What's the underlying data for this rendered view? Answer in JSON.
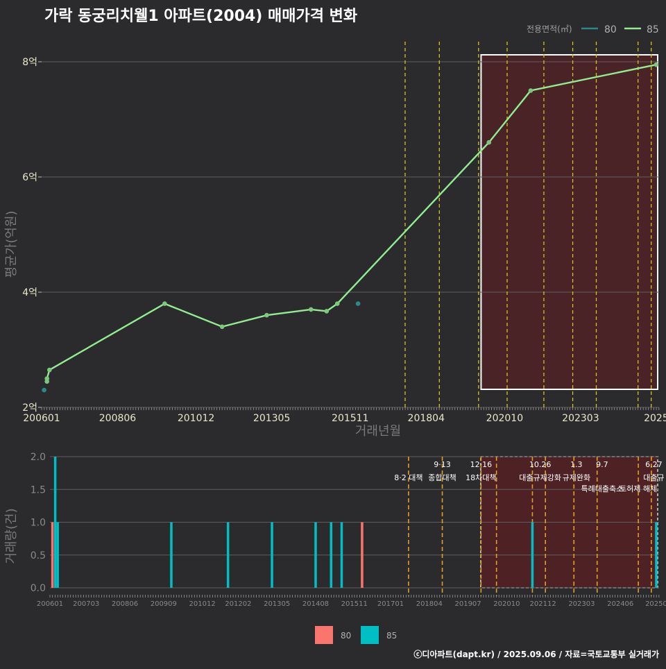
{
  "title": "가락 동궁리치웰1 아파트(2004) 매매가격 변화",
  "credit": "ⓒ디아파트(dapt.kr) / 2025.09.06 / 자료=국토교통부 실거래가",
  "legend_top": {
    "title": "전용면적(㎡)",
    "items": [
      {
        "label": "80",
        "color": "#2a8a8a"
      },
      {
        "label": "85",
        "color": "#90ee90"
      }
    ]
  },
  "legend_bottom": {
    "items": [
      {
        "label": "80",
        "color": "#f8766d"
      },
      {
        "label": "85",
        "color": "#00bfc4"
      }
    ]
  },
  "chart_data": [
    {
      "type": "line",
      "title": "가락 동궁리치웰1 아파트(2004) 매매가격 변화",
      "xlabel": "거래년월",
      "ylabel": "평균가(억원)",
      "ylim": [
        2,
        8
      ],
      "yticks": [
        2,
        4,
        6,
        8
      ],
      "ytick_labels": [
        "2억",
        "4억",
        "6억",
        "8억"
      ],
      "xlim": [
        2006.0,
        2025.67
      ],
      "xticks": [
        2006.0,
        2008.42,
        2010.92,
        2013.33,
        2015.83,
        2018.25,
        2020.75,
        2023.17,
        2025.58
      ],
      "xtick_labels": [
        "200601",
        "200806",
        "201012",
        "201305",
        "201511",
        "201804",
        "202010",
        "202303",
        "2025"
      ],
      "series": [
        {
          "name": "85",
          "color": "#90ee90",
          "points": [
            [
              2006.17,
              2.45
            ],
            [
              2006.17,
              2.5
            ],
            [
              2006.25,
              2.65
            ],
            [
              2009.92,
              3.8
            ],
            [
              2011.75,
              3.4
            ],
            [
              2013.17,
              3.6
            ],
            [
              2014.58,
              3.7
            ],
            [
              2015.08,
              3.67
            ],
            [
              2015.42,
              3.8
            ],
            [
              2020.25,
              6.6
            ],
            [
              2021.58,
              7.5
            ],
            [
              2025.58,
              7.95
            ]
          ]
        },
        {
          "name": "80",
          "color": "#2a8a8a",
          "points": [
            [
              2006.08,
              2.3
            ],
            [
              2016.08,
              3.8
            ]
          ]
        }
      ],
      "policy_lines": [
        2017.58,
        2018.67,
        2019.92,
        2020.83,
        2022.0,
        2022.92,
        2023.67,
        2025.0,
        2025.42
      ],
      "highlight_range": [
        2020.0,
        2025.67
      ]
    },
    {
      "type": "bar",
      "ylabel": "거래량(건)",
      "ylim": [
        0,
        2
      ],
      "yticks": [
        0,
        0.5,
        1,
        1.5,
        2
      ],
      "ytick_labels": [
        "0.0",
        "0.5",
        "1.0",
        "1.5",
        "2.0"
      ],
      "xlim": [
        2006.0,
        2025.67
      ],
      "xticks": [
        2006.0,
        2007.17,
        2008.42,
        2009.67,
        2010.92,
        2012.08,
        2013.33,
        2014.58,
        2015.83,
        2017.0,
        2018.25,
        2019.5,
        2020.75,
        2021.92,
        2023.17,
        2024.42,
        2025.58
      ],
      "xtick_labels": [
        "200601",
        "200703",
        "200806",
        "200909",
        "201012",
        "201202",
        "201305",
        "201408",
        "201511",
        "201701",
        "201804",
        "201907",
        "202010",
        "202112",
        "202303",
        "202406",
        "20250"
      ],
      "series": [
        {
          "name": "80",
          "color": "#f8766d",
          "points": [
            [
              2006.08,
              1
            ],
            [
              2016.08,
              1
            ]
          ]
        },
        {
          "name": "85",
          "color": "#00bfc4",
          "points": [
            [
              2006.17,
              2
            ],
            [
              2006.25,
              1
            ],
            [
              2009.92,
              1
            ],
            [
              2011.75,
              1
            ],
            [
              2013.17,
              1
            ],
            [
              2014.58,
              1
            ],
            [
              2015.08,
              1
            ],
            [
              2015.42,
              1
            ],
            [
              2021.58,
              1
            ],
            [
              2025.58,
              1
            ]
          ]
        }
      ],
      "policy_lines": [
        2017.58,
        2018.67,
        2019.92,
        2020.42,
        2021.58,
        2022.0,
        2022.92,
        2023.67,
        2025.0,
        2025.42
      ],
      "highlight_range": [
        2020.0,
        2025.67
      ],
      "annotations": [
        {
          "x": 2017.58,
          "top": "",
          "bottom": "8·2 대책"
        },
        {
          "x": 2018.67,
          "top": "9·13",
          "bottom": "종합대책"
        },
        {
          "x": 2019.92,
          "top": "12·16",
          "bottom": "18차대책"
        },
        {
          "x": 2021.83,
          "top": "10.26",
          "bottom": "대출규제강화"
        },
        {
          "x": 2023.0,
          "top": "1.3",
          "bottom": "규제완화"
        },
        {
          "x": 2023.83,
          "top": "9.7",
          "bottom": ""
        },
        {
          "x": 2023.83,
          "top": "",
          "bottom2": "특례대출축소"
        },
        {
          "x": 2025.0,
          "top": "",
          "bottom2": "토허제 해제"
        },
        {
          "x": 2025.5,
          "top": "6.27",
          "bottom": "대출규"
        }
      ]
    }
  ]
}
